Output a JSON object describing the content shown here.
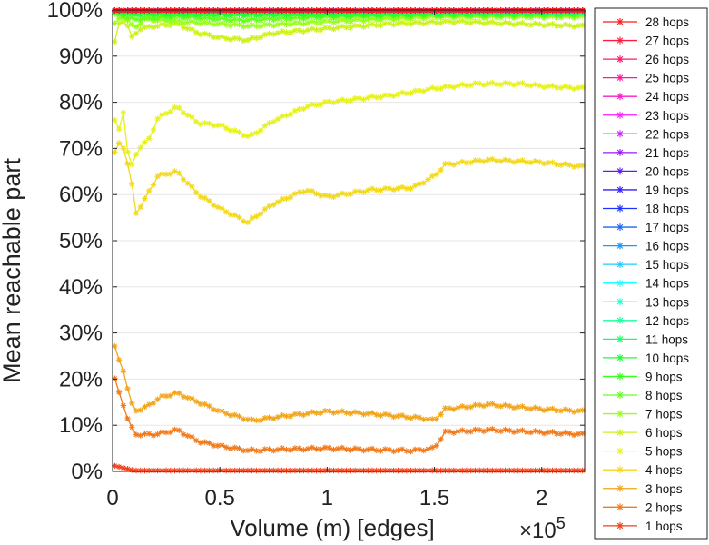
{
  "chart_data": {
    "type": "line",
    "xlabel": "Volume (m) [edges]",
    "ylabel": "Mean reachable part",
    "x_multiplier_label": "×10",
    "x_multiplier_exponent": "5",
    "xlim": [
      0,
      220000
    ],
    "ylim": [
      0,
      100
    ],
    "x_ticks": [
      {
        "value": 0,
        "label": "0"
      },
      {
        "value": 50000,
        "label": "0.5"
      },
      {
        "value": 100000,
        "label": "1"
      },
      {
        "value": 150000,
        "label": "1.5"
      },
      {
        "value": 200000,
        "label": "2"
      }
    ],
    "y_ticks": [
      {
        "value": 0,
        "label": "0%"
      },
      {
        "value": 10,
        "label": "10%"
      },
      {
        "value": 20,
        "label": "20%"
      },
      {
        "value": 30,
        "label": "30%"
      },
      {
        "value": 40,
        "label": "40%"
      },
      {
        "value": 50,
        "label": "50%"
      },
      {
        "value": 60,
        "label": "60%"
      },
      {
        "value": 70,
        "label": "70%"
      },
      {
        "value": 80,
        "label": "80%"
      },
      {
        "value": 90,
        "label": "90%"
      },
      {
        "value": 100,
        "label": "100%"
      }
    ],
    "grid": "horizontal",
    "legend_position": "right",
    "marker": "asterisk",
    "series": [
      {
        "name": "28 hops",
        "color": "#ff1a1a",
        "points": [
          [
            1000,
            99.9
          ],
          [
            220000,
            99.9
          ]
        ]
      },
      {
        "name": "27 hops",
        "color": "#ff1a3c",
        "points": [
          [
            1000,
            99.9
          ],
          [
            220000,
            99.9
          ]
        ]
      },
      {
        "name": "26 hops",
        "color": "#ff1a66",
        "points": [
          [
            1000,
            99.9
          ],
          [
            220000,
            99.9
          ]
        ]
      },
      {
        "name": "25 hops",
        "color": "#ff1a99",
        "points": [
          [
            1000,
            99.9
          ],
          [
            220000,
            99.9
          ]
        ]
      },
      {
        "name": "24 hops",
        "color": "#ff1acc",
        "points": [
          [
            1000,
            99.9
          ],
          [
            220000,
            99.9
          ]
        ]
      },
      {
        "name": "23 hops",
        "color": "#ff1aff",
        "points": [
          [
            1000,
            99.9
          ],
          [
            220000,
            99.9
          ]
        ]
      },
      {
        "name": "22 hops",
        "color": "#cc1aff",
        "points": [
          [
            1000,
            99.9
          ],
          [
            220000,
            99.9
          ]
        ]
      },
      {
        "name": "21 hops",
        "color": "#991aff",
        "points": [
          [
            1000,
            99.9
          ],
          [
            220000,
            99.9
          ]
        ]
      },
      {
        "name": "20 hops",
        "color": "#661aff",
        "points": [
          [
            1000,
            99.9
          ],
          [
            220000,
            99.9
          ]
        ]
      },
      {
        "name": "19 hops",
        "color": "#331aff",
        "points": [
          [
            1000,
            99.9
          ],
          [
            220000,
            99.9
          ]
        ]
      },
      {
        "name": "18 hops",
        "color": "#1a33ff",
        "points": [
          [
            1000,
            99.9
          ],
          [
            220000,
            99.9
          ]
        ]
      },
      {
        "name": "17 hops",
        "color": "#1a66ff",
        "points": [
          [
            1000,
            99.9
          ],
          [
            220000,
            99.9
          ]
        ]
      },
      {
        "name": "16 hops",
        "color": "#1a99ff",
        "points": [
          [
            1000,
            99.9
          ],
          [
            220000,
            99.9
          ]
        ]
      },
      {
        "name": "15 hops",
        "color": "#1accff",
        "points": [
          [
            1000,
            99.9
          ],
          [
            220000,
            99.8
          ]
        ]
      },
      {
        "name": "14 hops",
        "color": "#1affff",
        "points": [
          [
            1000,
            99.9
          ],
          [
            220000,
            99.8
          ]
        ]
      },
      {
        "name": "13 hops",
        "color": "#1affcc",
        "points": [
          [
            1000,
            99.9
          ],
          [
            220000,
            99.8
          ]
        ]
      },
      {
        "name": "12 hops",
        "color": "#1aff99",
        "points": [
          [
            1000,
            99.8
          ],
          [
            220000,
            99.7
          ]
        ]
      },
      {
        "name": "11 hops",
        "color": "#1aff66",
        "points": [
          [
            1000,
            99.8
          ],
          [
            220000,
            99.6
          ]
        ]
      },
      {
        "name": "10 hops",
        "color": "#1aff33",
        "points": [
          [
            1000,
            99.7
          ],
          [
            10000,
            99.4
          ],
          [
            60000,
            99.2
          ],
          [
            220000,
            99.5
          ]
        ]
      },
      {
        "name": "9 hops",
        "color": "#33ff1a",
        "points": [
          [
            1000,
            99.5
          ],
          [
            10000,
            99.0
          ],
          [
            60000,
            98.9
          ],
          [
            220000,
            99.3
          ]
        ]
      },
      {
        "name": "8 hops",
        "color": "#66ff1a",
        "points": [
          [
            1000,
            99.0
          ],
          [
            10000,
            98.0
          ],
          [
            30000,
            98.5
          ],
          [
            60000,
            97.8
          ],
          [
            100000,
            98.5
          ],
          [
            150000,
            99.0
          ],
          [
            220000,
            99.0
          ]
        ]
      },
      {
        "name": "7 hops",
        "color": "#99ff1a",
        "points": [
          [
            1000,
            97
          ],
          [
            5000,
            99
          ],
          [
            10000,
            96
          ],
          [
            15000,
            98
          ],
          [
            30000,
            97.5
          ],
          [
            50000,
            97
          ],
          [
            64000,
            96.5
          ],
          [
            100000,
            97.5
          ],
          [
            150000,
            98.5
          ],
          [
            220000,
            98.5
          ]
        ]
      },
      {
        "name": "6 hops",
        "color": "#ccf21a",
        "points": [
          [
            1000,
            93
          ],
          [
            3000,
            97
          ],
          [
            6000,
            98
          ],
          [
            9000,
            94
          ],
          [
            13000,
            96
          ],
          [
            20000,
            96.5
          ],
          [
            30000,
            97
          ],
          [
            40000,
            95
          ],
          [
            50000,
            94
          ],
          [
            63000,
            93.5
          ],
          [
            75000,
            95
          ],
          [
            100000,
            96
          ],
          [
            130000,
            97
          ],
          [
            160000,
            97.5
          ],
          [
            190000,
            97
          ],
          [
            220000,
            96.5
          ]
        ]
      },
      {
        "name": "5 hops",
        "color": "#e6f21a",
        "points": [
          [
            1000,
            76
          ],
          [
            3000,
            74
          ],
          [
            5000,
            78
          ],
          [
            8000,
            65
          ],
          [
            12000,
            70
          ],
          [
            17000,
            72
          ],
          [
            21000,
            76.5
          ],
          [
            30000,
            79
          ],
          [
            40000,
            75.5
          ],
          [
            50000,
            75
          ],
          [
            64000,
            72.5
          ],
          [
            75000,
            76
          ],
          [
            90000,
            79
          ],
          [
            100000,
            80
          ],
          [
            110000,
            80.5
          ],
          [
            130000,
            81.5
          ],
          [
            150000,
            83
          ],
          [
            170000,
            84
          ],
          [
            190000,
            84
          ],
          [
            200000,
            83.5
          ],
          [
            220000,
            83
          ]
        ]
      },
      {
        "name": "4 hops",
        "color": "#f2d91a",
        "points": [
          [
            1000,
            69
          ],
          [
            4000,
            72
          ],
          [
            8000,
            65
          ],
          [
            11000,
            56
          ],
          [
            15000,
            59
          ],
          [
            21000,
            64
          ],
          [
            30000,
            65
          ],
          [
            40000,
            60
          ],
          [
            50000,
            57
          ],
          [
            63000,
            54
          ],
          [
            75000,
            58
          ],
          [
            90000,
            61
          ],
          [
            100000,
            59.5
          ],
          [
            120000,
            61
          ],
          [
            140000,
            61.5
          ],
          [
            150000,
            64
          ],
          [
            155000,
            66.5
          ],
          [
            175000,
            67.5
          ],
          [
            200000,
            67
          ],
          [
            220000,
            66
          ]
        ]
      },
      {
        "name": "3 hops",
        "color": "#f2a51a",
        "points": [
          [
            1000,
            27
          ],
          [
            3000,
            24
          ],
          [
            5000,
            22
          ],
          [
            8000,
            16
          ],
          [
            10000,
            13
          ],
          [
            16000,
            14
          ],
          [
            22000,
            16
          ],
          [
            30000,
            17
          ],
          [
            40000,
            15
          ],
          [
            50000,
            13
          ],
          [
            65000,
            11
          ],
          [
            80000,
            12
          ],
          [
            100000,
            13
          ],
          [
            120000,
            12.5
          ],
          [
            145000,
            11.5
          ],
          [
            150000,
            11
          ],
          [
            155000,
            13.5
          ],
          [
            175000,
            14.5
          ],
          [
            200000,
            13.5
          ],
          [
            220000,
            13
          ]
        ]
      },
      {
        "name": "2 hops",
        "color": "#f27a1a",
        "points": [
          [
            1000,
            20
          ],
          [
            3000,
            17
          ],
          [
            5000,
            14.5
          ],
          [
            8000,
            10
          ],
          [
            11000,
            8
          ],
          [
            20000,
            8
          ],
          [
            30000,
            9
          ],
          [
            40000,
            6.5
          ],
          [
            50000,
            5.5
          ],
          [
            64000,
            4.5
          ],
          [
            80000,
            4.8
          ],
          [
            100000,
            5
          ],
          [
            120000,
            4.7
          ],
          [
            140000,
            4.5
          ],
          [
            150000,
            5
          ],
          [
            155000,
            8.5
          ],
          [
            175000,
            9
          ],
          [
            200000,
            8.5
          ],
          [
            220000,
            8
          ]
        ]
      },
      {
        "name": "1 hops",
        "color": "#f2401a",
        "points": [
          [
            1000,
            1.2
          ],
          [
            10000,
            0.2
          ],
          [
            220000,
            0.2
          ]
        ]
      }
    ]
  }
}
